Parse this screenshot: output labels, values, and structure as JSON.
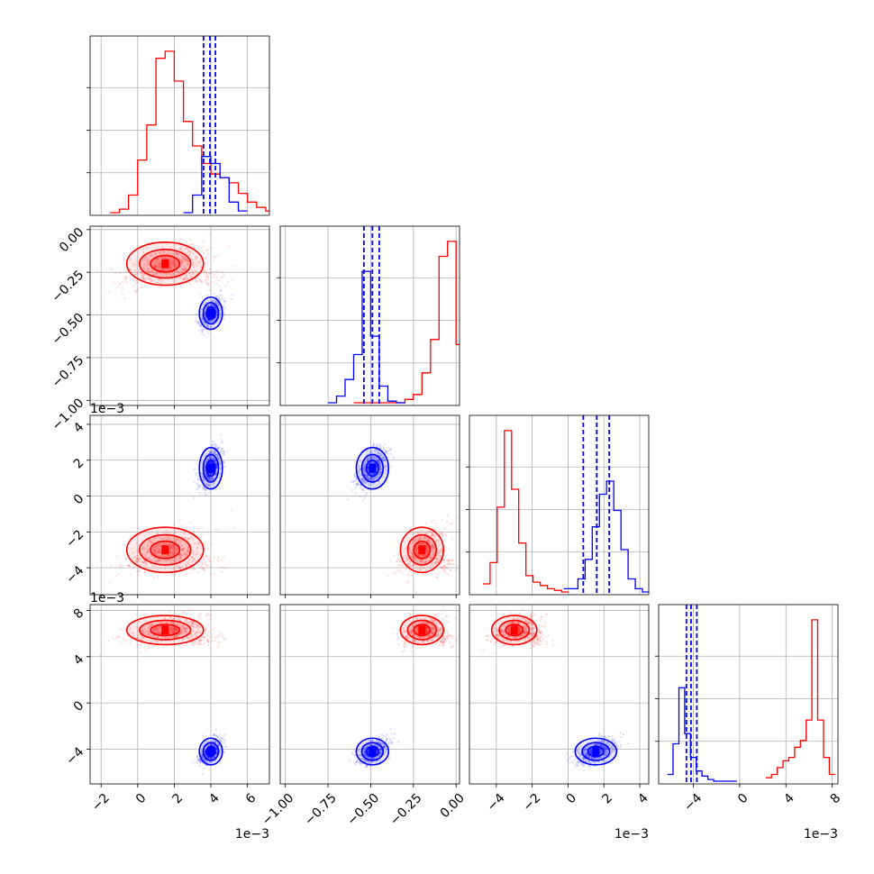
{
  "chart_data": {
    "type": "corner",
    "colors": {
      "a": "#ff0000",
      "b": "#0000ff"
    },
    "parameters": [
      {
        "range": [
          -2.6,
          7.2
        ],
        "ticks": [
          "−2",
          "0",
          "2",
          "4",
          "6"
        ],
        "tick_values": [
          -2,
          0,
          2,
          4,
          6
        ],
        "offset_label": "1e−3"
      },
      {
        "range": [
          -1.03,
          0.02
        ],
        "ticks": [
          "−1.00",
          "−0.75",
          "−0.50",
          "−0.25",
          "0.00"
        ],
        "tick_values": [
          -1.0,
          -0.75,
          -0.5,
          -0.25,
          0.0
        ],
        "offset_label": ""
      },
      {
        "range": [
          -5.5,
          4.5
        ],
        "ticks": [
          "−4",
          "−2",
          "0",
          "2",
          "4"
        ],
        "tick_values": [
          -4,
          -2,
          0,
          2,
          4
        ],
        "offset_label": "1e−3"
      },
      {
        "range": [
          -7.0,
          8.5
        ],
        "ticks": [
          "−4",
          "0",
          "4",
          "8"
        ],
        "tick_values": [
          -4,
          0,
          4,
          8
        ],
        "offset_label": "1e−3"
      }
    ],
    "diagonal": [
      {
        "a": {
          "x_start": -1.5,
          "bin_width": 0.5,
          "counts": [
            0,
            2,
            10,
            30,
            50,
            88,
            92,
            75,
            52,
            38,
            28,
            22,
            20,
            17,
            11,
            6,
            3,
            1
          ]
        },
        "b": {
          "x_start": 2.5,
          "bin_width": 0.5,
          "counts": [
            0,
            10,
            32,
            28,
            20,
            6,
            1
          ]
        },
        "quantiles_b": [
          3.6,
          3.95,
          4.25
        ]
      },
      {
        "a": {
          "x_start": -0.6,
          "bin_width": 0.05,
          "counts": [
            0,
            0,
            0,
            0,
            0,
            0,
            2,
            5,
            18,
            38,
            88,
            97,
            35,
            6,
            0
          ]
        },
        "b": {
          "x_start": -0.75,
          "bin_width": 0.05,
          "counts": [
            0,
            4,
            14,
            29,
            79,
            40,
            10,
            1,
            0
          ]
        },
        "quantiles_b": [
          -0.54,
          -0.49,
          -0.45
        ]
      },
      {
        "a": {
          "x_start": -4.75,
          "bin_width": 0.4,
          "counts": [
            5,
            18,
            52,
            99,
            63,
            30,
            10,
            6,
            4,
            2,
            1,
            0
          ]
        },
        "b": {
          "x_start": -0.25,
          "bin_width": 0.4,
          "counts": [
            2,
            2,
            8,
            20,
            40,
            60,
            68,
            50,
            26,
            8,
            2,
            0
          ]
        },
        "quantiles_b": [
          0.85,
          1.6,
          2.3
        ]
      },
      {
        "a": {
          "x_start": 2.25,
          "bin_width": 0.5,
          "counts": [
            2,
            4,
            8,
            12,
            14,
            20,
            24,
            36,
            95,
            36,
            14,
            4
          ]
        },
        "b": {
          "x_start": -6.25,
          "bin_width": 0.5,
          "counts": [
            4,
            22,
            55,
            28,
            14,
            6,
            3,
            1,
            0,
            0,
            0,
            0
          ]
        },
        "quantiles_b": [
          -4.6,
          -4.2,
          -3.7
        ]
      }
    ],
    "clusters": {
      "a": {
        "mean": [
          1.5,
          -0.2,
          -3.0,
          6.3
        ]
      },
      "b": {
        "mean": [
          4.0,
          -0.49,
          1.55,
          -4.2
        ]
      }
    }
  }
}
